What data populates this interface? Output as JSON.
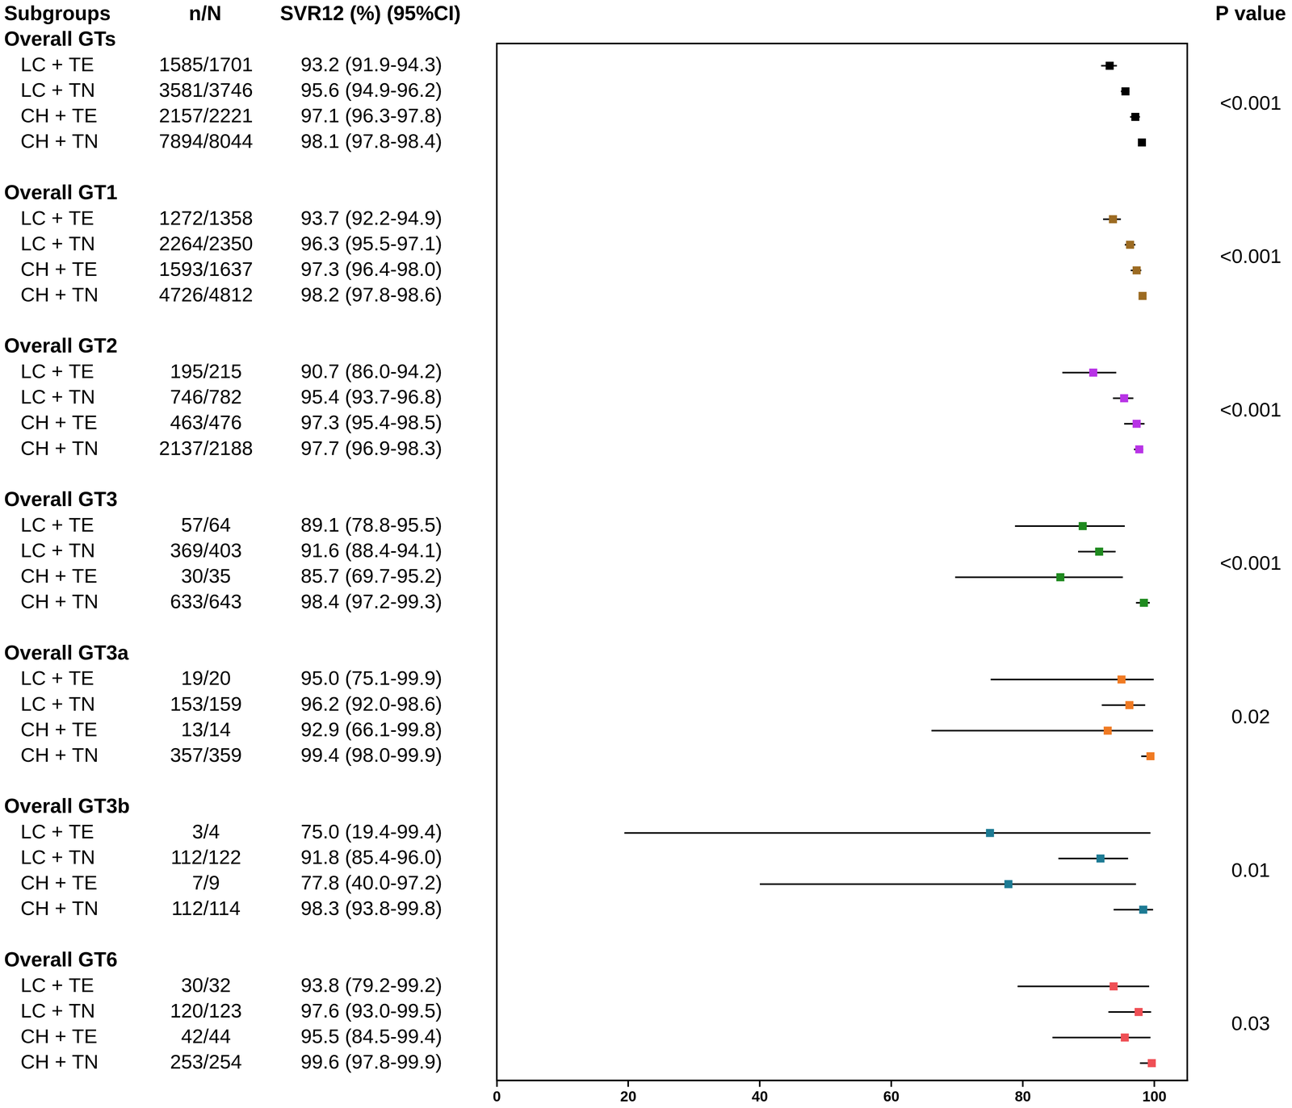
{
  "chart_data": {
    "type": "forest",
    "columns": {
      "subgroups": "Subgroups",
      "n_N": "n/N",
      "estimate": "SVR12 (%) (95%CI)",
      "p_value": "P value"
    },
    "xlim": [
      0,
      105
    ],
    "xticks": [
      0,
      20,
      40,
      60,
      80,
      100
    ],
    "grid": false,
    "tick_labels": "x",
    "marker": "square",
    "groups": [
      {
        "name": "Overall GTs",
        "color": "#000000",
        "p_value": "<0.001",
        "rows": [
          {
            "label": "LC + TE",
            "n_N": "1585/1701",
            "value": 93.2,
            "ci_low": 91.9,
            "ci_high": 94.3,
            "value_label": "93.2 (91.9-94.3)"
          },
          {
            "label": "LC + TN",
            "n_N": "3581/3746",
            "value": 95.6,
            "ci_low": 94.9,
            "ci_high": 96.2,
            "value_label": "95.6 (94.9-96.2)"
          },
          {
            "label": "CH + TE",
            "n_N": "2157/2221",
            "value": 97.1,
            "ci_low": 96.3,
            "ci_high": 97.8,
            "value_label": "97.1 (96.3-97.8)"
          },
          {
            "label": "CH + TN",
            "n_N": "7894/8044",
            "value": 98.1,
            "ci_low": 97.8,
            "ci_high": 98.4,
            "value_label": "98.1 (97.8-98.4)"
          }
        ]
      },
      {
        "name": "Overall GT1",
        "color": "#9c6b22",
        "p_value": "<0.001",
        "rows": [
          {
            "label": "LC + TE",
            "n_N": "1272/1358",
            "value": 93.7,
            "ci_low": 92.2,
            "ci_high": 94.9,
            "value_label": "93.7 (92.2-94.9)"
          },
          {
            "label": "LC + TN",
            "n_N": "2264/2350",
            "value": 96.3,
            "ci_low": 95.5,
            "ci_high": 97.1,
            "value_label": "96.3 (95.5-97.1)"
          },
          {
            "label": "CH + TE",
            "n_N": "1593/1637",
            "value": 97.3,
            "ci_low": 96.4,
            "ci_high": 98.0,
            "value_label": "97.3 (96.4-98.0)"
          },
          {
            "label": "CH + TN",
            "n_N": "4726/4812",
            "value": 98.2,
            "ci_low": 97.8,
            "ci_high": 98.6,
            "value_label": "98.2 (97.8-98.6)"
          }
        ]
      },
      {
        "name": "Overall GT2",
        "color": "#b833e6",
        "p_value": "<0.001",
        "rows": [
          {
            "label": "LC + TE",
            "n_N": "195/215",
            "value": 90.7,
            "ci_low": 86.0,
            "ci_high": 94.2,
            "value_label": "90.7 (86.0-94.2)"
          },
          {
            "label": "LC + TN",
            "n_N": "746/782",
            "value": 95.4,
            "ci_low": 93.7,
            "ci_high": 96.8,
            "value_label": "95.4 (93.7-96.8)"
          },
          {
            "label": "CH + TE",
            "n_N": "463/476",
            "value": 97.3,
            "ci_low": 95.4,
            "ci_high": 98.5,
            "value_label": "97.3 (95.4-98.5)"
          },
          {
            "label": "CH + TN",
            "n_N": "2137/2188",
            "value": 97.7,
            "ci_low": 96.9,
            "ci_high": 98.3,
            "value_label": "97.7 (96.9-98.3)"
          }
        ]
      },
      {
        "name": "Overall GT3",
        "color": "#1f8a1f",
        "p_value": "<0.001",
        "rows": [
          {
            "label": "LC + TE",
            "n_N": "57/64",
            "value": 89.1,
            "ci_low": 78.8,
            "ci_high": 95.5,
            "value_label": "89.1 (78.8-95.5)"
          },
          {
            "label": "LC + TN",
            "n_N": "369/403",
            "value": 91.6,
            "ci_low": 88.4,
            "ci_high": 94.1,
            "value_label": "91.6 (88.4-94.1)"
          },
          {
            "label": "CH + TE",
            "n_N": "30/35",
            "value": 85.7,
            "ci_low": 69.7,
            "ci_high": 95.2,
            "value_label": "85.7 (69.7-95.2)"
          },
          {
            "label": "CH + TN",
            "n_N": "633/643",
            "value": 98.4,
            "ci_low": 97.2,
            "ci_high": 99.3,
            "value_label": "98.4 (97.2-99.3)"
          }
        ]
      },
      {
        "name": "Overall GT3a",
        "color": "#f07a22",
        "p_value": "0.02",
        "rows": [
          {
            "label": "LC + TE",
            "n_N": "19/20",
            "value": 95.0,
            "ci_low": 75.1,
            "ci_high": 99.9,
            "value_label": "95.0 (75.1-99.9)"
          },
          {
            "label": "LC + TN",
            "n_N": "153/159",
            "value": 96.2,
            "ci_low": 92.0,
            "ci_high": 98.6,
            "value_label": "96.2 (92.0-98.6)"
          },
          {
            "label": "CH + TE",
            "n_N": "13/14",
            "value": 92.9,
            "ci_low": 66.1,
            "ci_high": 99.8,
            "value_label": "92.9 (66.1-99.8)"
          },
          {
            "label": "CH + TN",
            "n_N": "357/359",
            "value": 99.4,
            "ci_low": 98.0,
            "ci_high": 99.9,
            "value_label": "99.4 (98.0-99.9)"
          }
        ]
      },
      {
        "name": "Overall GT3b",
        "color": "#1d7b94",
        "p_value": "0.01",
        "rows": [
          {
            "label": "LC + TE",
            "n_N": "3/4",
            "value": 75.0,
            "ci_low": 19.4,
            "ci_high": 99.4,
            "value_label": "75.0 (19.4-99.4)"
          },
          {
            "label": "LC + TN",
            "n_N": "112/122",
            "value": 91.8,
            "ci_low": 85.4,
            "ci_high": 96.0,
            "value_label": "91.8 (85.4-96.0)"
          },
          {
            "label": "CH + TE",
            "n_N": "7/9",
            "value": 77.8,
            "ci_low": 40.0,
            "ci_high": 97.2,
            "value_label": "77.8 (40.0-97.2)"
          },
          {
            "label": "CH + TN",
            "n_N": "112/114",
            "value": 98.3,
            "ci_low": 93.8,
            "ci_high": 99.8,
            "value_label": "98.3 (93.8-99.8)"
          }
        ]
      },
      {
        "name": "Overall GT6",
        "color": "#ef4f55",
        "p_value": "0.03",
        "rows": [
          {
            "label": "LC + TE",
            "n_N": "30/32",
            "value": 93.8,
            "ci_low": 79.2,
            "ci_high": 99.2,
            "value_label": "93.8 (79.2-99.2)"
          },
          {
            "label": "LC + TN",
            "n_N": "120/123",
            "value": 97.6,
            "ci_low": 93.0,
            "ci_high": 99.5,
            "value_label": "97.6 (93.0-99.5)"
          },
          {
            "label": "CH + TE",
            "n_N": "42/44",
            "value": 95.5,
            "ci_low": 84.5,
            "ci_high": 99.4,
            "value_label": "95.5 (84.5-99.4)"
          },
          {
            "label": "CH + TN",
            "n_N": "253/254",
            "value": 99.6,
            "ci_low": 97.8,
            "ci_high": 99.9,
            "value_label": "99.6 (97.8-99.9)"
          }
        ]
      }
    ]
  }
}
